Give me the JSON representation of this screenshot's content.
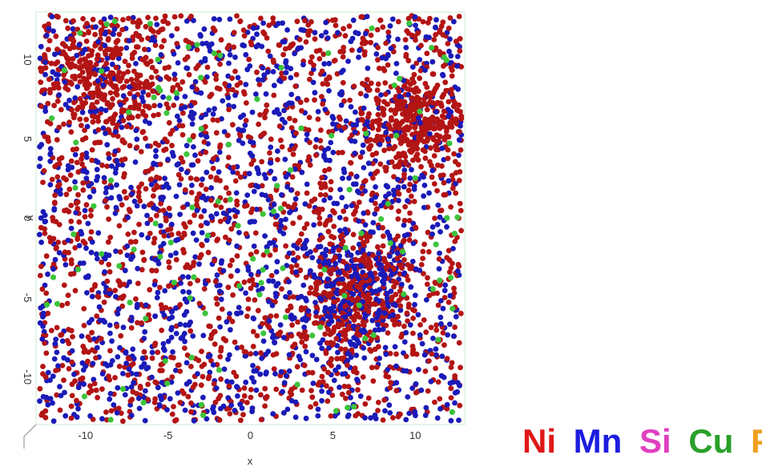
{
  "chart_data": {
    "type": "scatter",
    "xlabel": "x",
    "ylabel": "y",
    "xlim": [
      -13,
      13
    ],
    "ylim": [
      -13,
      13
    ],
    "x_ticks": [
      -10,
      -5,
      0,
      5,
      10
    ],
    "x_tick_labels": [
      "-10",
      "-5",
      "0",
      "5",
      "10"
    ],
    "y_ticks": [
      10,
      5,
      0,
      -5,
      -10
    ],
    "y_tick_labels": [
      "10",
      "5",
      "0",
      "-5",
      "-10"
    ],
    "grid": false,
    "legend_position": "bottom-right",
    "clusters": [
      {
        "center": [
          -9,
          9
        ],
        "radius": 3.5,
        "element": "Ni"
      },
      {
        "center": [
          10,
          6
        ],
        "radius": 3,
        "element": "Ni"
      },
      {
        "center": [
          6.5,
          -4.5
        ],
        "radius": 3.2,
        "element": "Ni+Mn"
      }
    ],
    "series": [
      {
        "name": "Ni",
        "color": "#b31414",
        "approx_count": 2600
      },
      {
        "name": "Mn",
        "color": "#1a1ab8",
        "approx_count": 1600
      },
      {
        "name": "Si",
        "color": "#e040c0",
        "approx_count": 0
      },
      {
        "name": "Cu",
        "color": "#3cc43c",
        "approx_count": 120
      },
      {
        "name": "P",
        "color": "#f0a020",
        "approx_count": 0
      }
    ]
  },
  "legend": [
    {
      "label": "Ni",
      "color": "#e01818"
    },
    {
      "label": "Mn",
      "color": "#1c1ce0"
    },
    {
      "label": "Si",
      "color": "#e040c0"
    },
    {
      "label": "Cu",
      "color": "#2aa02a"
    },
    {
      "label": "P",
      "color": "#f0a020"
    }
  ]
}
